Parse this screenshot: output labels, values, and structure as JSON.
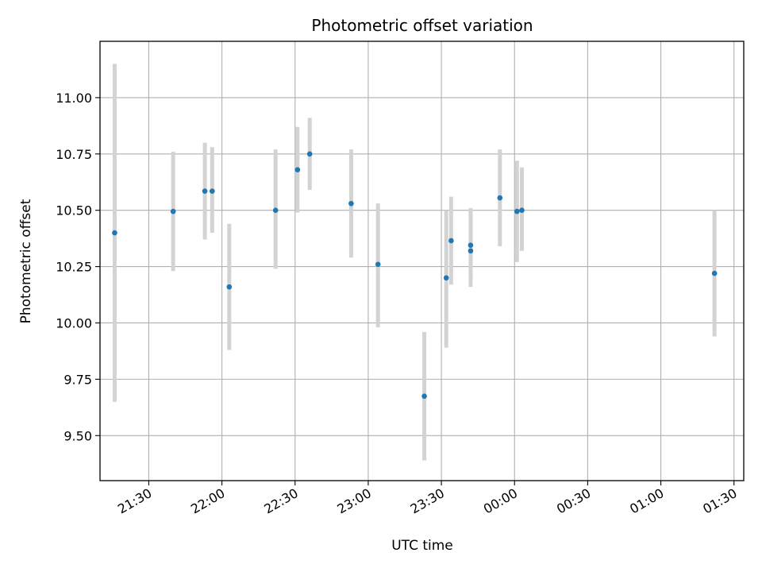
{
  "chart_data": {
    "type": "scatter",
    "title": "Photometric offset variation",
    "xlabel": "UTC time",
    "ylabel": "Photometric offset",
    "grid": true,
    "x_ticks": [
      "21:30",
      "22:00",
      "22:30",
      "23:00",
      "23:30",
      "00:00",
      "00:30",
      "01:00",
      "01:30"
    ],
    "y_ticks": [
      "9.50",
      "9.75",
      "10.00",
      "10.25",
      "10.50",
      "10.75",
      "11.00"
    ],
    "ylim": [
      9.3,
      11.25
    ],
    "xlim": [
      "21:10",
      "01:34"
    ],
    "colors": {
      "point": "#1f77b4",
      "errorbar": "#d3d3d3",
      "grid": "#b0b0b0"
    },
    "points": [
      {
        "x": "21:16",
        "y": 10.4,
        "ylow": 9.65,
        "yhigh": 11.15
      },
      {
        "x": "21:40",
        "y": 10.495,
        "ylow": 10.23,
        "yhigh": 10.76
      },
      {
        "x": "21:53",
        "y": 10.585,
        "ylow": 10.37,
        "yhigh": 10.8
      },
      {
        "x": "21:56",
        "y": 10.585,
        "ylow": 10.4,
        "yhigh": 10.78
      },
      {
        "x": "22:03",
        "y": 10.16,
        "ylow": 9.88,
        "yhigh": 10.44
      },
      {
        "x": "22:22",
        "y": 10.5,
        "ylow": 10.24,
        "yhigh": 10.77
      },
      {
        "x": "22:31",
        "y": 10.68,
        "ylow": 10.49,
        "yhigh": 10.87
      },
      {
        "x": "22:36",
        "y": 10.75,
        "ylow": 10.59,
        "yhigh": 10.91
      },
      {
        "x": "22:53",
        "y": 10.53,
        "ylow": 10.29,
        "yhigh": 10.77
      },
      {
        "x": "23:04",
        "y": 10.26,
        "ylow": 9.98,
        "yhigh": 10.53
      },
      {
        "x": "23:23",
        "y": 9.675,
        "ylow": 9.39,
        "yhigh": 9.96
      },
      {
        "x": "23:32",
        "y": 10.2,
        "ylow": 9.89,
        "yhigh": 10.5
      },
      {
        "x": "23:34",
        "y": 10.365,
        "ylow": 10.17,
        "yhigh": 10.56
      },
      {
        "x": "23:42",
        "y": 10.32,
        "ylow": 10.16,
        "yhigh": 10.48
      },
      {
        "x": "23:42",
        "y": 10.345,
        "ylow": 10.19,
        "yhigh": 10.51
      },
      {
        "x": "23:54",
        "y": 10.555,
        "ylow": 10.34,
        "yhigh": 10.77
      },
      {
        "x": "00:01",
        "y": 10.495,
        "ylow": 10.27,
        "yhigh": 10.72
      },
      {
        "x": "00:03",
        "y": 10.5,
        "ylow": 10.32,
        "yhigh": 10.69
      },
      {
        "x": "01:22",
        "y": 10.22,
        "ylow": 9.94,
        "yhigh": 10.5
      }
    ]
  }
}
